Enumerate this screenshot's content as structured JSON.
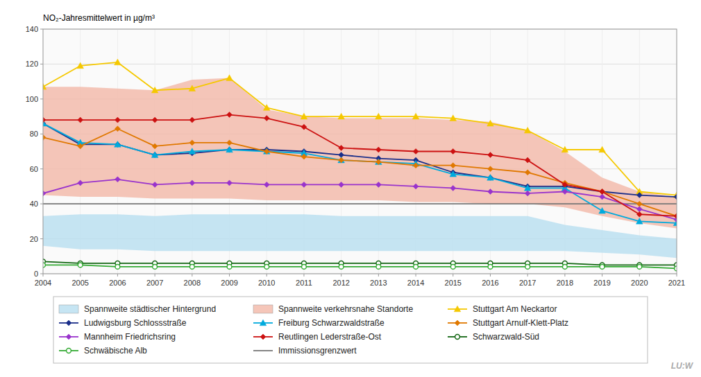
{
  "chart_data": {
    "type": "line",
    "y_label": "NO₂-Jahresmittelwert in µg/m³",
    "annotations": [
      "LU:W"
    ],
    "x": [
      2004,
      2005,
      2006,
      2007,
      2008,
      2009,
      2010,
      2011,
      2012,
      2013,
      2014,
      2015,
      2016,
      2017,
      2018,
      2019,
      2020,
      2021
    ],
    "xlim": [
      2004,
      2021
    ],
    "xticks": [
      2004,
      2005,
      2006,
      2007,
      2008,
      2009,
      2010,
      2011,
      2012,
      2013,
      2014,
      2015,
      2016,
      2017,
      2018,
      2019,
      2020,
      2021
    ],
    "ylim": [
      0,
      140
    ],
    "yticks": [
      0,
      20,
      40,
      60,
      80,
      100,
      120,
      140
    ],
    "grid": true,
    "legend": "bottom",
    "series": [
      {
        "name": "Spannweite städtischer Hintergrund",
        "type": "band",
        "color": "#b8dff0",
        "low": [
          16,
          14,
          14,
          13,
          13,
          13,
          13,
          13,
          13,
          13,
          13,
          13,
          13,
          13,
          13,
          12,
          11,
          9
        ],
        "high": [
          33,
          34,
          34,
          33,
          34,
          34,
          34,
          34,
          33,
          33,
          33,
          33,
          33,
          33,
          28,
          25,
          22,
          20
        ]
      },
      {
        "name": "Spannweite verkehrsnahe Standorte",
        "type": "band",
        "color": "#f2b8a8",
        "low": [
          45,
          44,
          44,
          43,
          43,
          43,
          42,
          42,
          42,
          42,
          41,
          41,
          40,
          40,
          38,
          33,
          29,
          26
        ],
        "high": [
          107,
          107,
          106,
          105,
          111,
          112,
          94,
          90,
          89,
          89,
          89,
          88,
          87,
          82,
          70,
          55,
          47,
          44
        ]
      },
      {
        "name": "Stuttgart Am Neckartor",
        "type": "line",
        "color": "#f5c800",
        "marker": "triangle",
        "values": [
          107,
          119,
          121,
          105,
          106,
          112,
          95,
          90,
          90,
          90,
          90,
          89,
          86,
          82,
          71,
          71,
          47,
          45
        ]
      },
      {
        "name": "Ludwigsburg Schlossstraße",
        "type": "line",
        "color": "#1a2e8a",
        "marker": "diamond",
        "values": [
          86,
          74,
          74,
          68,
          69,
          71,
          71,
          70,
          68,
          66,
          65,
          58,
          55,
          50,
          50,
          47,
          45,
          44
        ]
      },
      {
        "name": "Freiburg Schwarzwaldstraße",
        "type": "line",
        "color": "#00aadd",
        "marker": "triangle",
        "values": [
          86,
          75,
          74,
          68,
          70,
          71,
          70,
          69,
          65,
          64,
          63,
          57,
          55,
          49,
          49,
          36,
          30,
          29
        ]
      },
      {
        "name": "Stuttgart Arnulf-Klett-Platz",
        "type": "line",
        "color": "#e07800",
        "marker": "diamond",
        "values": [
          78,
          73,
          83,
          73,
          75,
          75,
          70,
          67,
          65,
          64,
          62,
          62,
          60,
          58,
          52,
          47,
          40,
          33
        ]
      },
      {
        "name": "Mannheim Friedrichsring",
        "type": "line",
        "color": "#9933cc",
        "marker": "diamond",
        "values": [
          46,
          52,
          54,
          51,
          52,
          52,
          51,
          51,
          51,
          51,
          50,
          49,
          47,
          46,
          47,
          44,
          37,
          31
        ]
      },
      {
        "name": "Reutlingen Lederstraße-Ost",
        "type": "line",
        "color": "#cc1111",
        "marker": "diamond",
        "values": [
          88,
          88,
          88,
          88,
          88,
          91,
          89,
          84,
          72,
          71,
          70,
          70,
          68,
          65,
          51,
          47,
          34,
          33
        ]
      },
      {
        "name": "Schwarzwald-Süd",
        "type": "line",
        "color": "#116611",
        "marker": "open-circle",
        "values": [
          7,
          6,
          6,
          6,
          6,
          6,
          6,
          6,
          6,
          6,
          6,
          6,
          6,
          6,
          6,
          5,
          5,
          5
        ]
      },
      {
        "name": "Schwäbische Alb",
        "type": "line",
        "color": "#33aa33",
        "marker": "open-circle",
        "values": [
          5,
          5,
          4,
          4,
          4,
          4,
          4,
          4,
          4,
          4,
          4,
          4,
          4,
          4,
          4,
          4,
          4,
          3
        ]
      },
      {
        "name": "Immissionsgrenzwert",
        "type": "hline",
        "color": "#777777",
        "y": 40
      }
    ]
  }
}
